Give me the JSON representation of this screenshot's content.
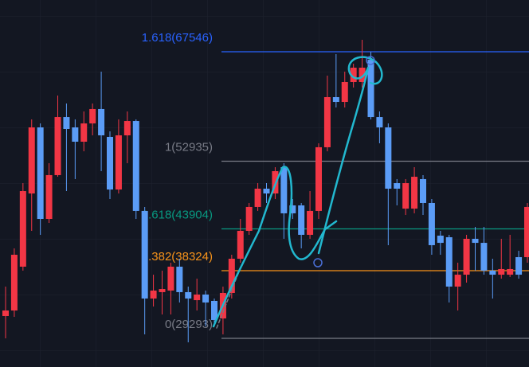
{
  "chart_data": {
    "type": "candlestick",
    "up_color": "#f23645",
    "down_color": "#5b9cf6",
    "ylim": [
      25468,
      74454
    ],
    "candles": [
      [
        32270,
        36200,
        29290,
        33010
      ],
      [
        33010,
        41300,
        32160,
        40450
      ],
      [
        38860,
        50010,
        38330,
        48950
      ],
      [
        48630,
        58520,
        43640,
        57450
      ],
      [
        57450,
        57980,
        43110,
        45230
      ],
      [
        45230,
        52670,
        44700,
        51080
      ],
      [
        51080,
        61700,
        50860,
        58830
      ],
      [
        58830,
        60640,
        48950,
        57240
      ],
      [
        57450,
        58520,
        50550,
        55540
      ],
      [
        55540,
        59580,
        54260,
        57980
      ],
      [
        57980,
        60640,
        56390,
        59900
      ],
      [
        59900,
        64890,
        51610,
        56390
      ],
      [
        56180,
        56920,
        47890,
        49160
      ],
      [
        49160,
        58520,
        48630,
        56390
      ],
      [
        56390,
        59580,
        52670,
        58300
      ],
      [
        58300,
        58520,
        45230,
        46300
      ],
      [
        46300,
        46830,
        29820,
        34610
      ],
      [
        34610,
        37790,
        33540,
        35670
      ],
      [
        35460,
        38330,
        32480,
        35880
      ],
      [
        35670,
        39390,
        32480,
        38860
      ],
      [
        38860,
        39920,
        34080,
        35460
      ],
      [
        35460,
        36200,
        28760,
        34610
      ],
      [
        34390,
        37260,
        33010,
        35140
      ],
      [
        35140,
        35670,
        30890,
        34080
      ],
      [
        34290,
        34610,
        30890,
        31740
      ],
      [
        31950,
        36200,
        29820,
        35350
      ],
      [
        35350,
        40450,
        34610,
        39920
      ],
      [
        39920,
        45230,
        39390,
        43640
      ],
      [
        43640,
        47360,
        43110,
        46830
      ],
      [
        46830,
        50010,
        46300,
        49270
      ],
      [
        49270,
        50010,
        47360,
        48630
      ],
      [
        48630,
        52140,
        47890,
        51610
      ],
      [
        52140,
        52670,
        42580,
        45980
      ],
      [
        47040,
        47890,
        45230,
        45980
      ],
      [
        47040,
        47360,
        41300,
        43110
      ],
      [
        43110,
        48950,
        42580,
        46300
      ],
      [
        46300,
        55330,
        45230,
        54800
      ],
      [
        54800,
        64360,
        54260,
        61490
      ],
      [
        61490,
        67230,
        60110,
        60850
      ],
      [
        60850,
        64890,
        60110,
        63510
      ],
      [
        63510,
        65950,
        62770,
        65420
      ],
      [
        63510,
        69140,
        62770,
        65420
      ],
      [
        66480,
        67550,
        58520,
        58830
      ],
      [
        58830,
        59580,
        55330,
        57450
      ],
      [
        57450,
        57980,
        41730,
        49270
      ],
      [
        50010,
        50550,
        47040,
        49270
      ],
      [
        46610,
        50550,
        45760,
        50010
      ],
      [
        46610,
        52140,
        45980,
        50860
      ],
      [
        50550,
        51080,
        45760,
        47360
      ],
      [
        47360,
        47890,
        40450,
        41730
      ],
      [
        43000,
        43640,
        40450,
        42040
      ],
      [
        42790,
        43110,
        34080,
        36200
      ],
      [
        36200,
        39390,
        33010,
        37790
      ],
      [
        37790,
        43110,
        36730,
        42580
      ],
      [
        42580,
        44170,
        38330,
        42040
      ],
      [
        42040,
        44170,
        37790,
        38330
      ],
      [
        38330,
        39920,
        34610,
        37790
      ],
      [
        37790,
        42580,
        37260,
        38540
      ],
      [
        37790,
        43110,
        37480,
        38540
      ],
      [
        40130,
        40980,
        37260,
        37790
      ],
      [
        40130,
        47360,
        39390,
        46830
      ]
    ],
    "fib_levels": [
      {
        "value": 67546,
        "label": "1.618(67546)",
        "color": "#2962ff"
      },
      {
        "value": 52935,
        "label": "1(52935)",
        "color": "#787b86"
      },
      {
        "value": 43904,
        "label": "0.618(43904)",
        "color": "#089981"
      },
      {
        "value": 38324,
        "label": "0.382(38324)",
        "color": "#f7931a"
      },
      {
        "value": 29293,
        "label": "0(29293)",
        "color": "#787b86"
      }
    ]
  }
}
